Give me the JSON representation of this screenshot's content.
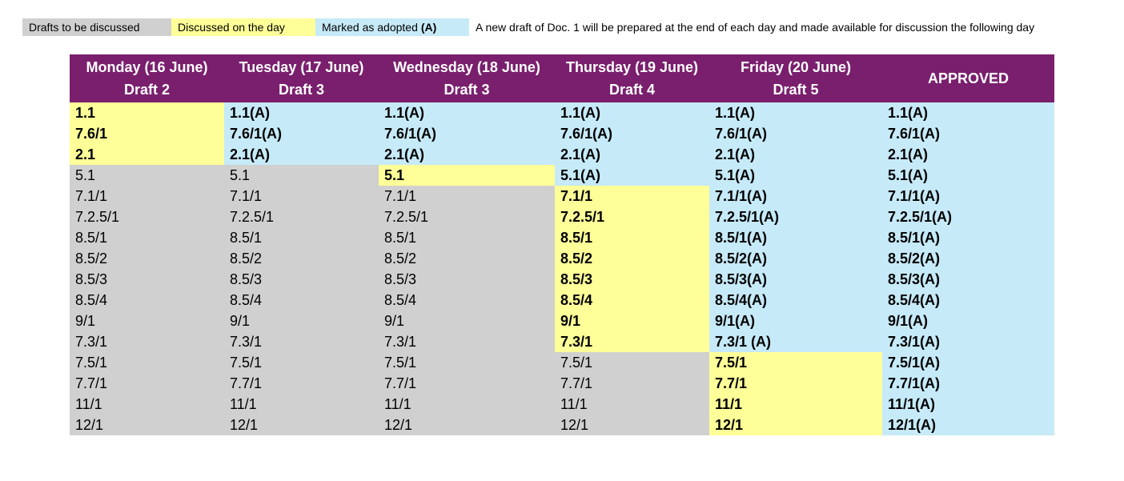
{
  "legend": {
    "pending_label": "Drafts to be discussed",
    "discussed_label": "Discussed on the day",
    "adopted_label": "Marked as adopted",
    "adopted_code": "(A)",
    "note": "A new draft of Doc. 1 will be prepared at the end of each day and made available for discussion the following day",
    "colors": {
      "pending": "#d0d0d0",
      "discussed": "#ffff99",
      "adopted": "#c6eaf8",
      "header": "#7a1f6e"
    }
  },
  "columns": [
    {
      "day": "Monday (16 June)",
      "draft": "Draft 2",
      "cells": [
        {
          "t": "1.1",
          "s": "d"
        },
        {
          "t": "7.6/1",
          "s": "d"
        },
        {
          "t": "2.1",
          "s": "d"
        },
        {
          "t": "5.1",
          "s": "p"
        },
        {
          "t": "7.1/1",
          "s": "p"
        },
        {
          "t": "7.2.5/1",
          "s": "p"
        },
        {
          "t": "8.5/1",
          "s": "p"
        },
        {
          "t": "8.5/2",
          "s": "p"
        },
        {
          "t": "8.5/3",
          "s": "p"
        },
        {
          "t": "8.5/4",
          "s": "p"
        },
        {
          "t": "9/1",
          "s": "p"
        },
        {
          "t": "7.3/1",
          "s": "p"
        },
        {
          "t": "7.5/1",
          "s": "p"
        },
        {
          "t": "7.7/1",
          "s": "p"
        },
        {
          "t": "11/1",
          "s": "p"
        },
        {
          "t": "12/1",
          "s": "p"
        }
      ]
    },
    {
      "day": "Tuesday (17 June)",
      "draft": "Draft 3",
      "cells": [
        {
          "t": "1.1(A)",
          "s": "a"
        },
        {
          "t": "7.6/1(A)",
          "s": "a"
        },
        {
          "t": "2.1(A)",
          "s": "a"
        },
        {
          "t": "5.1",
          "s": "p"
        },
        {
          "t": "7.1/1",
          "s": "p"
        },
        {
          "t": "7.2.5/1",
          "s": "p"
        },
        {
          "t": "8.5/1",
          "s": "p"
        },
        {
          "t": "8.5/2",
          "s": "p"
        },
        {
          "t": "8.5/3",
          "s": "p"
        },
        {
          "t": "8.5/4",
          "s": "p"
        },
        {
          "t": "9/1",
          "s": "p"
        },
        {
          "t": "7.3/1",
          "s": "p"
        },
        {
          "t": "7.5/1",
          "s": "p"
        },
        {
          "t": "7.7/1",
          "s": "p"
        },
        {
          "t": "11/1",
          "s": "p"
        },
        {
          "t": "12/1",
          "s": "p"
        }
      ]
    },
    {
      "day": "Wednesday (18 June)",
      "draft": "Draft 3",
      "cells": [
        {
          "t": "1.1(A)",
          "s": "a"
        },
        {
          "t": "7.6/1(A)",
          "s": "a"
        },
        {
          "t": "2.1(A)",
          "s": "a"
        },
        {
          "t": "5.1",
          "s": "d"
        },
        {
          "t": "7.1/1",
          "s": "p"
        },
        {
          "t": "7.2.5/1",
          "s": "p"
        },
        {
          "t": "8.5/1",
          "s": "p"
        },
        {
          "t": "8.5/2",
          "s": "p"
        },
        {
          "t": "8.5/3",
          "s": "p"
        },
        {
          "t": "8.5/4",
          "s": "p"
        },
        {
          "t": "9/1",
          "s": "p"
        },
        {
          "t": "7.3/1",
          "s": "p"
        },
        {
          "t": "7.5/1",
          "s": "p"
        },
        {
          "t": "7.7/1",
          "s": "p"
        },
        {
          "t": "11/1",
          "s": "p"
        },
        {
          "t": "12/1",
          "s": "p"
        }
      ]
    },
    {
      "day": "Thursday (19 June)",
      "draft": "Draft 4",
      "cells": [
        {
          "t": "1.1(A)",
          "s": "a"
        },
        {
          "t": "7.6/1(A)",
          "s": "a"
        },
        {
          "t": "2.1(A)",
          "s": "a"
        },
        {
          "t": "5.1(A)",
          "s": "a"
        },
        {
          "t": "7.1/1",
          "s": "d"
        },
        {
          "t": "7.2.5/1",
          "s": "d"
        },
        {
          "t": "8.5/1",
          "s": "d"
        },
        {
          "t": "8.5/2",
          "s": "d"
        },
        {
          "t": "8.5/3",
          "s": "d"
        },
        {
          "t": "8.5/4",
          "s": "d"
        },
        {
          "t": "9/1",
          "s": "d"
        },
        {
          "t": "7.3/1",
          "s": "d"
        },
        {
          "t": "7.5/1",
          "s": "p"
        },
        {
          "t": "7.7/1",
          "s": "p"
        },
        {
          "t": "11/1",
          "s": "p"
        },
        {
          "t": "12/1",
          "s": "p"
        }
      ]
    },
    {
      "day": "Friday (20 June)",
      "draft": "Draft 5",
      "cells": [
        {
          "t": "1.1(A)",
          "s": "a"
        },
        {
          "t": "7.6/1(A)",
          "s": "a"
        },
        {
          "t": "2.1(A)",
          "s": "a"
        },
        {
          "t": "5.1(A)",
          "s": "a"
        },
        {
          "t": "7.1/1(A)",
          "s": "a"
        },
        {
          "t": "7.2.5/1(A)",
          "s": "a"
        },
        {
          "t": "8.5/1(A)",
          "s": "a"
        },
        {
          "t": "8.5/2(A)",
          "s": "a"
        },
        {
          "t": "8.5/3(A)",
          "s": "a"
        },
        {
          "t": "8.5/4(A)",
          "s": "a"
        },
        {
          "t": "9/1(A)",
          "s": "a"
        },
        {
          "t": "7.3/1 (A)",
          "s": "a"
        },
        {
          "t": "7.5/1",
          "s": "d"
        },
        {
          "t": "7.7/1",
          "s": "d"
        },
        {
          "t": "11/1",
          "s": "d"
        },
        {
          "t": "12/1",
          "s": "d"
        }
      ]
    },
    {
      "day": "APPROVED",
      "draft": "",
      "cells": [
        {
          "t": "1.1(A)",
          "s": "a"
        },
        {
          "t": "7.6/1(A)",
          "s": "a"
        },
        {
          "t": "2.1(A)",
          "s": "a"
        },
        {
          "t": "5.1(A)",
          "s": "a"
        },
        {
          "t": "7.1/1(A)",
          "s": "a"
        },
        {
          "t": "7.2.5/1(A)",
          "s": "a"
        },
        {
          "t": "8.5/1(A)",
          "s": "a"
        },
        {
          "t": "8.5/2(A)",
          "s": "a"
        },
        {
          "t": "8.5/3(A)",
          "s": "a"
        },
        {
          "t": "8.5/4(A)",
          "s": "a"
        },
        {
          "t": "9/1(A)",
          "s": "a"
        },
        {
          "t": "7.3/1(A)",
          "s": "a"
        },
        {
          "t": "7.5/1(A)",
          "s": "a"
        },
        {
          "t": "7.7/1(A)",
          "s": "a"
        },
        {
          "t": "11/1(A)",
          "s": "a"
        },
        {
          "t": "12/1(A)",
          "s": "a"
        }
      ]
    }
  ]
}
